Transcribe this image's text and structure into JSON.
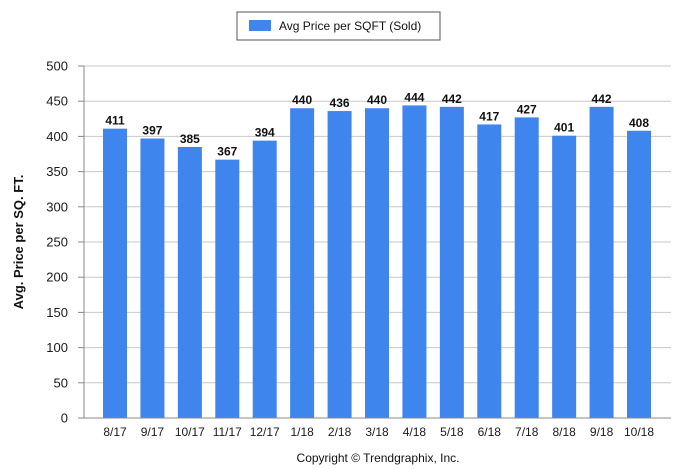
{
  "chart_data": {
    "type": "bar",
    "categories": [
      "8/17",
      "9/17",
      "10/17",
      "11/17",
      "12/17",
      "1/18",
      "2/18",
      "3/18",
      "4/18",
      "5/18",
      "6/18",
      "7/18",
      "8/18",
      "9/18",
      "10/18"
    ],
    "series": [
      {
        "name": "Avg Price per SQFT (Sold)",
        "values": [
          411,
          397,
          385,
          367,
          394,
          440,
          436,
          440,
          444,
          442,
          417,
          427,
          401,
          442,
          408
        ],
        "color": "#3f85ee"
      }
    ],
    "ylabel": "Avg. Price per SQ. FT.",
    "xlabel": "",
    "ylim": [
      0,
      500
    ],
    "yticks": [
      0,
      50,
      100,
      150,
      200,
      250,
      300,
      350,
      400,
      450,
      500
    ],
    "grid": true,
    "legend": "top-center",
    "data_labels": true
  },
  "footer": {
    "copyright": "Copyright © Trendgraphix, Inc."
  },
  "colors": {
    "bar": "#3f85ee",
    "grid": "#c8c8c8",
    "axis": "#888888"
  }
}
